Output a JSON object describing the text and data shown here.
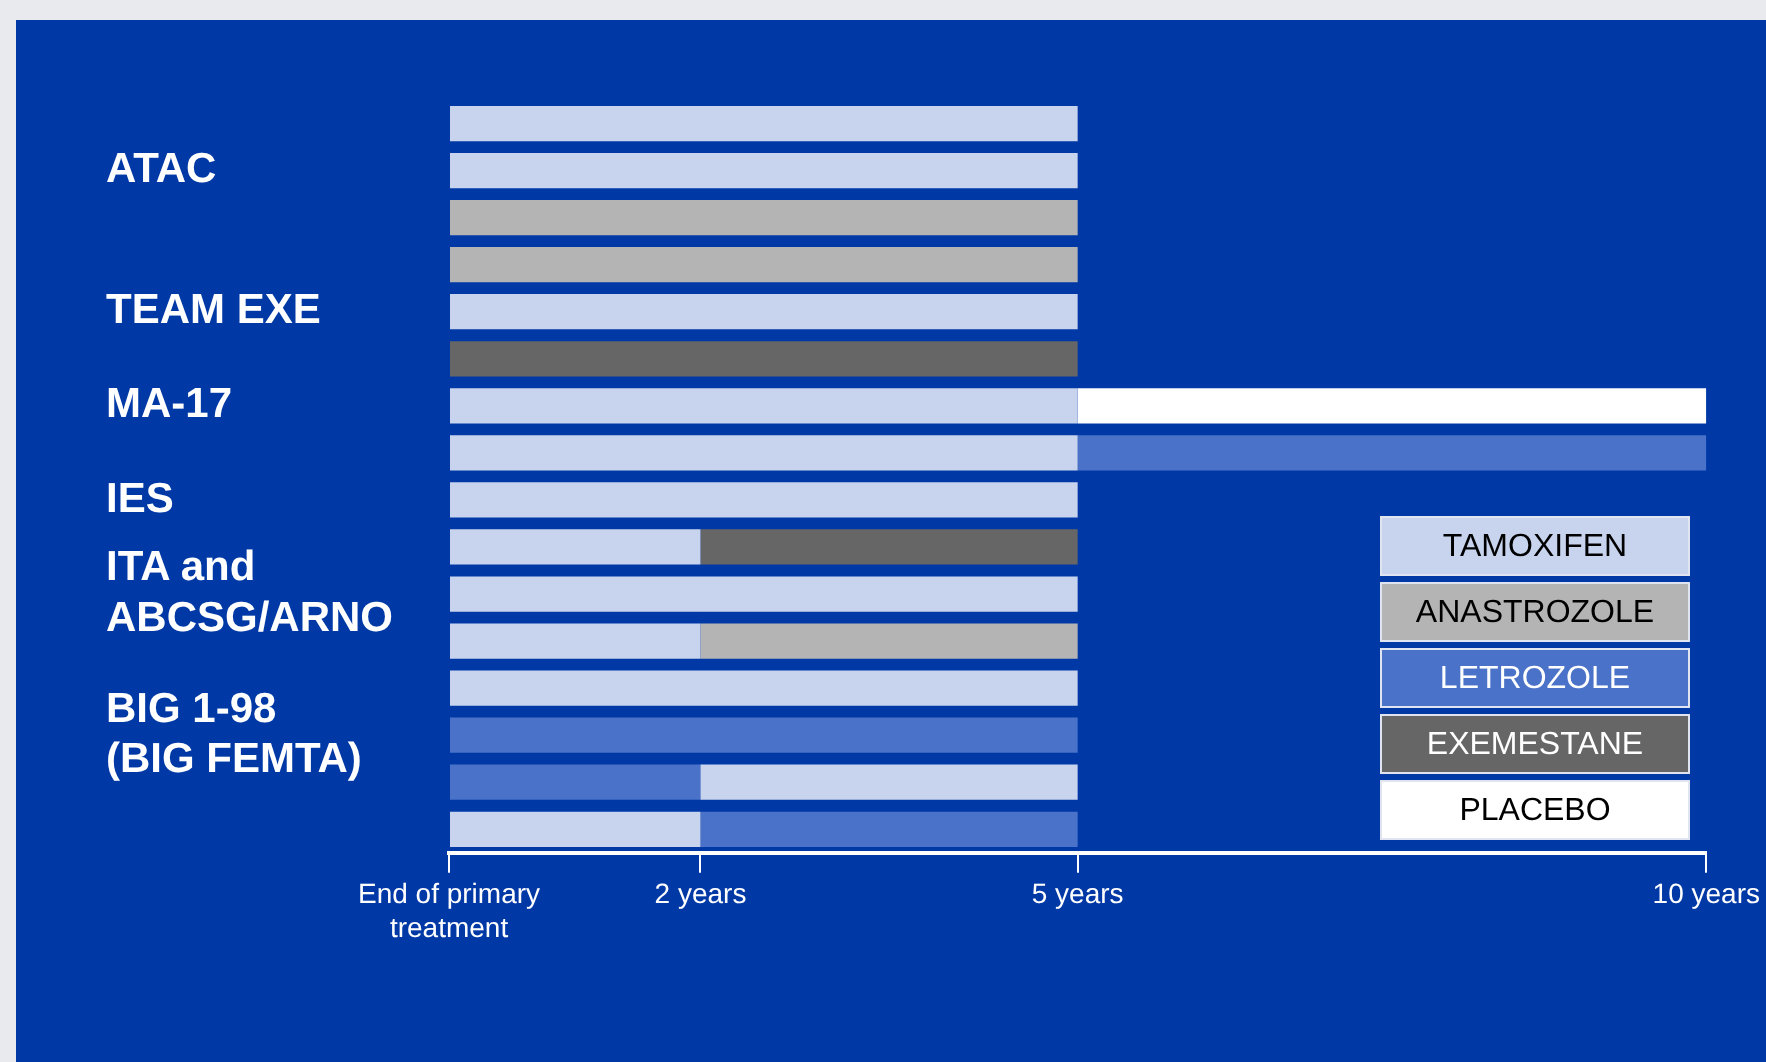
{
  "chart_data": {
    "type": "bar",
    "orientation": "horizontal",
    "legend": "bottom right",
    "grid": false,
    "categories": [
      null,
      "ATAC",
      null,
      null,
      "TEAM EXE",
      null,
      "MA-17",
      null,
      "IES",
      null,
      "ITA and\nABCSG/ARNO",
      null,
      null,
      "BIG 1-98\n(BIG FEMTA)",
      null,
      null
    ],
    "xlim": [
      0,
      10
    ],
    "xticks": [
      {
        "value": 0,
        "label": "End of primary\ntreatment"
      },
      {
        "value": 2,
        "label": "2 years"
      },
      {
        "value": 5,
        "label": "5 years"
      },
      {
        "value": 10,
        "label": "10 years"
      }
    ],
    "series": [
      {
        "name": "TAMOXIFEN",
        "color": "#c8d4ee",
        "base": [
          0,
          0,
          null,
          null,
          0,
          null,
          0,
          0,
          0,
          0,
          0,
          0,
          0,
          null,
          2,
          0
        ],
        "values": [
          5,
          5,
          null,
          null,
          5,
          null,
          5,
          5,
          5,
          2,
          5,
          2,
          5,
          null,
          3,
          2
        ]
      },
      {
        "name": "ANASTROZOLE",
        "color": "#b4b4b4",
        "base": [
          null,
          null,
          0,
          0,
          null,
          null,
          null,
          null,
          null,
          null,
          null,
          2,
          null,
          null,
          null,
          null
        ],
        "values": [
          null,
          null,
          5,
          5,
          null,
          null,
          null,
          null,
          null,
          null,
          null,
          3,
          null,
          null,
          null,
          null
        ]
      },
      {
        "name": "LETROZOLE",
        "color": "#4a72c8",
        "base": [
          null,
          null,
          null,
          null,
          null,
          null,
          null,
          5,
          null,
          null,
          null,
          null,
          null,
          0,
          0,
          2
        ],
        "values": [
          null,
          null,
          null,
          null,
          null,
          null,
          null,
          5,
          null,
          null,
          null,
          null,
          null,
          5,
          2,
          3
        ]
      },
      {
        "name": "EXEMESTANE",
        "color": "#666666",
        "base": [
          null,
          null,
          null,
          null,
          null,
          0,
          null,
          null,
          null,
          2,
          null,
          null,
          null,
          null,
          null,
          null
        ],
        "values": [
          null,
          null,
          null,
          null,
          null,
          5,
          null,
          null,
          null,
          3,
          null,
          null,
          null,
          null,
          null,
          null
        ]
      },
      {
        "name": "PLACEBO",
        "color": "#ffffff",
        "base": [
          null,
          null,
          null,
          null,
          null,
          null,
          5,
          null,
          null,
          null,
          null,
          null,
          null,
          null,
          null,
          null
        ],
        "values": [
          null,
          null,
          null,
          null,
          null,
          null,
          5,
          null,
          null,
          null,
          null,
          null,
          null,
          null,
          null,
          null
        ]
      }
    ]
  }
}
